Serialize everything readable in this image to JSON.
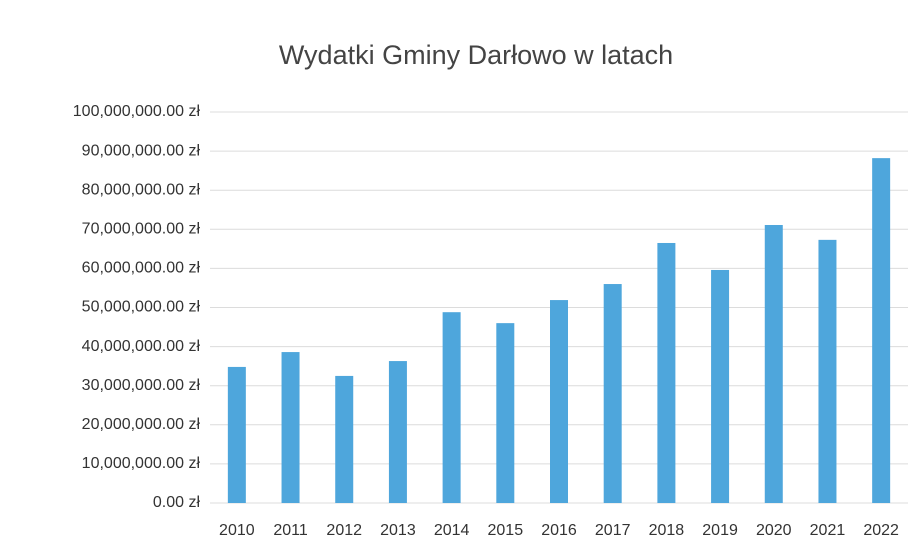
{
  "chart_data": {
    "type": "bar",
    "title": "Wydatki Gminy Darłowo w latach",
    "categories": [
      "2010",
      "2011",
      "2012",
      "2013",
      "2014",
      "2015",
      "2016",
      "2017",
      "2018",
      "2019",
      "2020",
      "2021",
      "2022"
    ],
    "values": [
      34800000,
      38600000,
      32500000,
      36300000,
      48800000,
      46000000,
      51900000,
      56000000,
      66500000,
      59600000,
      71100000,
      67300000,
      88200000
    ],
    "color": "#4ea6dc",
    "ylim": [
      0,
      100000000
    ],
    "yticks": [
      {
        "value": 0,
        "label": "0.00 zł"
      },
      {
        "value": 10000000,
        "label": "10,000,000.00 zł"
      },
      {
        "value": 20000000,
        "label": "20,000,000.00 zł"
      },
      {
        "value": 30000000,
        "label": "30,000,000.00 zł"
      },
      {
        "value": 40000000,
        "label": "40,000,000.00 zł"
      },
      {
        "value": 50000000,
        "label": "50,000,000.00 zł"
      },
      {
        "value": 60000000,
        "label": "60,000,000.00 zł"
      },
      {
        "value": 70000000,
        "label": "70,000,000.00 zł"
      },
      {
        "value": 80000000,
        "label": "80,000,000.00 zł"
      },
      {
        "value": 90000000,
        "label": "90,000,000.00 zł"
      },
      {
        "value": 100000000,
        "label": "100,000,000.00 zł"
      }
    ],
    "grid": true
  }
}
